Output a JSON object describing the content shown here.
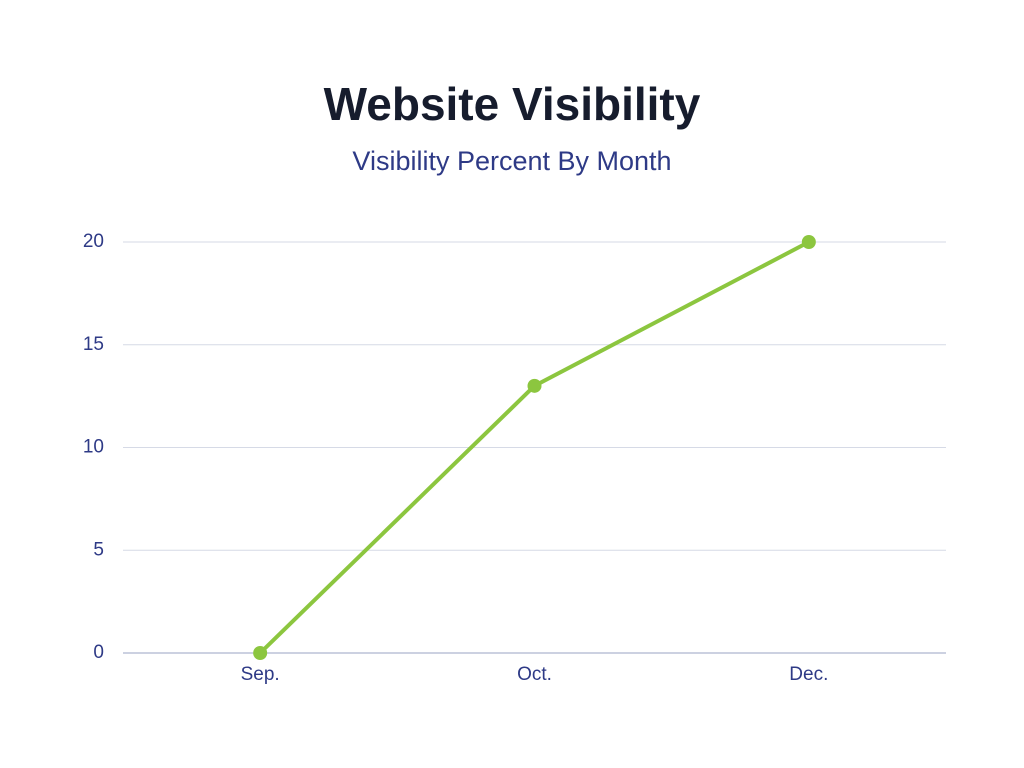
{
  "chart_data": {
    "type": "line",
    "title": "Website Visibility",
    "subtitle": "Visibility Percent By Month",
    "categories": [
      "Sep.",
      "Oct.",
      "Dec."
    ],
    "series": [
      {
        "color": "#8cc63f",
        "values": [
          0,
          13,
          20
        ]
      }
    ],
    "ylim": [
      0,
      20
    ],
    "yticks": [
      0,
      5,
      10,
      15,
      20
    ],
    "grid": true
  }
}
